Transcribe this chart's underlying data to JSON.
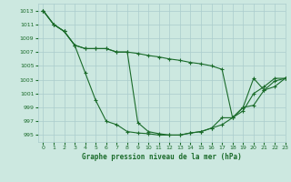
{
  "background_color": "#cce8e0",
  "grid_color": "#aacccc",
  "line_color": "#1a6b2a",
  "title": "Graphe pression niveau de la mer (hPa)",
  "xlim": [
    -0.5,
    23
  ],
  "ylim": [
    994,
    1014
  ],
  "xticks": [
    0,
    1,
    2,
    3,
    4,
    5,
    6,
    7,
    8,
    9,
    10,
    11,
    12,
    13,
    14,
    15,
    16,
    17,
    18,
    19,
    20,
    21,
    22,
    23
  ],
  "yticks": [
    995,
    997,
    999,
    1001,
    1003,
    1005,
    1007,
    1009,
    1011,
    1013
  ],
  "curve1": {
    "x": [
      0,
      1,
      2,
      3,
      4,
      5,
      6,
      7,
      8,
      9,
      10,
      11,
      12,
      13,
      14,
      15,
      16,
      17,
      18,
      19,
      20,
      21,
      22,
      23
    ],
    "y": [
      1013,
      1011,
      1010,
      1008,
      1004,
      1000,
      997,
      996.5,
      995.5,
      995.3,
      995.2,
      995.0,
      995.0,
      995.0,
      995.3,
      995.5,
      996.0,
      996.5,
      997.5,
      998.5,
      1001.0,
      1002.0,
      1003.2,
      1003.2
    ]
  },
  "curve2": {
    "x": [
      0,
      1,
      2,
      3,
      4,
      5,
      6,
      7,
      8,
      9,
      10,
      11,
      12,
      13,
      14,
      15,
      16,
      17,
      18,
      19,
      20,
      21,
      22,
      23
    ],
    "y": [
      1013,
      1011,
      1010,
      1008,
      1007.5,
      1007.5,
      1007.5,
      1007.0,
      1007.0,
      1006.8,
      1006.5,
      1006.3,
      1006.0,
      1005.8,
      1005.5,
      1005.3,
      1005.0,
      1004.5,
      997.5,
      999.0,
      1003.2,
      1001.5,
      1002.8,
      1003.2
    ]
  },
  "curve3": {
    "x": [
      0,
      1,
      2,
      3,
      4,
      5,
      6,
      7,
      8,
      9,
      10,
      11,
      12,
      13,
      14,
      15,
      16,
      17,
      18,
      19,
      20,
      21,
      22,
      23
    ],
    "y": [
      1013,
      1011,
      1010,
      1008,
      1007.5,
      1007.5,
      1007.5,
      1007.0,
      1007.0,
      996.8,
      995.5,
      995.2,
      995.0,
      995.0,
      995.3,
      995.5,
      996.0,
      997.5,
      997.5,
      999.0,
      999.3,
      1001.5,
      1002.0,
      1003.2
    ]
  }
}
